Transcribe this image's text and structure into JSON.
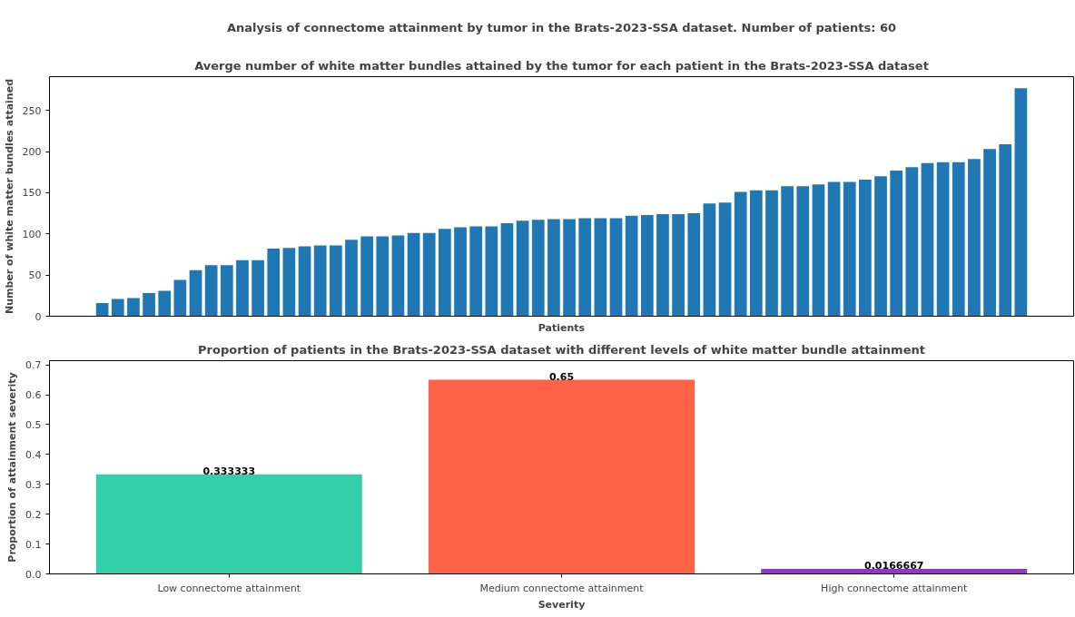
{
  "chart_data": [
    {
      "type": "bar",
      "title": "Analysis of connectome attainment by tumor in the Brats-2023-SSA dataset. Number of patients: 60",
      "subtitle": "Averge number of white matter bundles attained by the tumor for each patient in the Brats-2023-SSA dataset",
      "xlabel": "Patients",
      "ylabel": "Number of white matter bundles attained",
      "categories": [
        null,
        null,
        null,
        null,
        null,
        null,
        null,
        null,
        null,
        null,
        null,
        null,
        null,
        null,
        null,
        null,
        null,
        null,
        null,
        null,
        null,
        null,
        null,
        null,
        null,
        null,
        null,
        null,
        null,
        null,
        null,
        null,
        null,
        null,
        null,
        null,
        null,
        null,
        null,
        null,
        null,
        null,
        null,
        null,
        null,
        null,
        null,
        null,
        null,
        null,
        null,
        null,
        null,
        null,
        null,
        null,
        null,
        null,
        null,
        null
      ],
      "series": [
        {
          "color": "#1f77b4",
          "values": [
            16,
            21,
            22,
            28,
            31,
            44,
            56,
            62,
            62,
            68,
            68,
            82,
            83,
            85,
            86,
            86,
            93,
            97,
            97,
            98,
            101,
            101,
            106,
            108,
            109,
            109,
            113,
            116,
            117,
            118,
            118,
            119,
            119,
            119,
            122,
            123,
            124,
            124,
            125,
            137,
            138,
            151,
            153,
            153,
            158,
            158,
            160,
            163,
            163,
            166,
            170,
            177,
            181,
            186,
            187,
            187,
            191,
            203,
            209,
            277
          ]
        }
      ],
      "ylim": [
        0,
        291
      ],
      "yticks": [
        0,
        50,
        100,
        150,
        200,
        250
      ],
      "tick_labels": "y"
    },
    {
      "type": "bar",
      "title": "Proportion of patients in the Brats-2023-SSA dataset with different levels of white matter bundle attainment",
      "xlabel": "Severity",
      "ylabel": "Proportion of attainment severity",
      "categories": [
        "Low connectome attainment",
        "Medium connectome attainment",
        "High connectome attainment"
      ],
      "values": [
        0.333333,
        0.65,
        0.0166667
      ],
      "colors": [
        "#33cfaa",
        "#ff6347",
        "#9932cc"
      ],
      "value_labels": [
        "0.333333",
        "0.65",
        "0.0166667"
      ],
      "ylim": [
        0,
        0.714
      ],
      "yticks": [
        {
          "value": 0,
          "label": "0.0"
        },
        0.1,
        0.2,
        0.3,
        0.4,
        0.5,
        0.6,
        0.7
      ]
    }
  ]
}
